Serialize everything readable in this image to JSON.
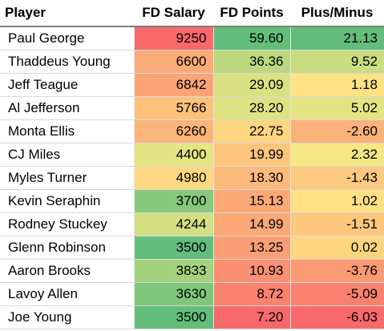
{
  "table": {
    "headers": {
      "player": "Player",
      "salary": "FD Salary",
      "points": "FD Points",
      "plus_minus": "Plus/Minus"
    },
    "rows": [
      {
        "player": "Paul George",
        "salary": "9250",
        "points": "59.60",
        "plus_minus": "21.13",
        "salary_color": "#f8696b",
        "points_color": "#63be7b",
        "plus_minus_color": "#63be7b"
      },
      {
        "player": "Thaddeus Young",
        "salary": "6600",
        "points": "36.36",
        "plus_minus": "9.52",
        "salary_color": "#fbab77",
        "points_color": "#bcd980",
        "plus_minus_color": "#c9dd81"
      },
      {
        "player": "Jeff Teague",
        "salary": "6842",
        "points": "29.09",
        "plus_minus": "1.18",
        "salary_color": "#fba476",
        "points_color": "#d9e282",
        "plus_minus_color": "#fde383"
      },
      {
        "player": "Al Jefferson",
        "salary": "5766",
        "points": "28.20",
        "plus_minus": "5.02",
        "salary_color": "#fcc27b",
        "points_color": "#dde382",
        "plus_minus_color": "#e4e582"
      },
      {
        "player": "Monta Ellis",
        "salary": "6260",
        "points": "22.75",
        "plus_minus": "-2.60",
        "salary_color": "#fbb479",
        "points_color": "#fed580",
        "plus_minus_color": "#fbb279"
      },
      {
        "player": "CJ Miles",
        "salary": "4400",
        "points": "19.99",
        "plus_minus": "2.32",
        "salary_color": "#e3e483",
        "points_color": "#fec57d",
        "plus_minus_color": "#f5e884"
      },
      {
        "player": "Myles Turner",
        "salary": "4980",
        "points": "18.30",
        "plus_minus": "-1.43",
        "salary_color": "#fed981",
        "points_color": "#fdbb7b",
        "plus_minus_color": "#fdc97e"
      },
      {
        "player": "Kevin Seraphin",
        "salary": "3700",
        "points": "15.13",
        "plus_minus": "1.02",
        "salary_color": "#86c97d",
        "points_color": "#fca977",
        "plus_minus_color": "#fee182"
      },
      {
        "player": "Rodney Stuckey",
        "salary": "4244",
        "points": "14.99",
        "plus_minus": "-1.51",
        "salary_color": "#d2e082",
        "points_color": "#fca877",
        "plus_minus_color": "#fdc87d"
      },
      {
        "player": "Glenn Robinson",
        "salary": "3500",
        "points": "13.25",
        "plus_minus": "0.02",
        "salary_color": "#63be7b",
        "points_color": "#fb9e75",
        "plus_minus_color": "#fed680"
      },
      {
        "player": "Aaron Brooks",
        "salary": "3833",
        "points": "10.93",
        "plus_minus": "-3.76",
        "salary_color": "#a5d27f",
        "points_color": "#fa9073",
        "plus_minus_color": "#fa9a74"
      },
      {
        "player": "Lavoy Allen",
        "salary": "3630",
        "points": "8.72",
        "plus_minus": "-5.09",
        "salary_color": "#80c77c",
        "points_color": "#f9826f",
        "plus_minus_color": "#f98170"
      },
      {
        "player": "Joe Young",
        "salary": "3500",
        "points": "7.20",
        "plus_minus": "-6.03",
        "salary_color": "#63be7b",
        "points_color": "#f8696b",
        "plus_minus_color": "#f8696b"
      }
    ]
  }
}
